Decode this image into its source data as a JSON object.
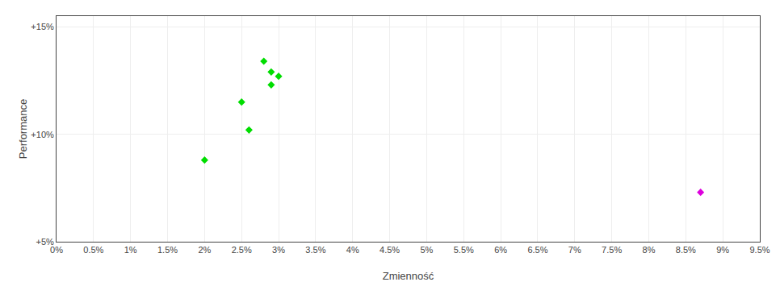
{
  "chart_data": {
    "type": "scatter",
    "x_label": "Zmienność",
    "y_label": "Performance",
    "series": [
      {
        "color": "#00dd00",
        "marker": "diamond",
        "x": [
          0.028,
          0.029,
          0.03,
          0.029,
          0.025,
          0.026,
          0.02
        ],
        "values": [
          0.134,
          0.129,
          0.127,
          0.123,
          0.115,
          0.102,
          0.088
        ]
      },
      {
        "color": "#dd00dd",
        "marker": "diamond",
        "x": [
          0.087
        ],
        "values": [
          0.073
        ]
      }
    ],
    "xlim": [
      0.0,
      0.095
    ],
    "ylim": [
      0.05,
      0.155
    ],
    "xticks": [
      {
        "value": 0.0,
        "label": "0%"
      },
      {
        "value": 0.005,
        "label": "0.5%"
      },
      {
        "value": 0.01,
        "label": "1%"
      },
      {
        "value": 0.015,
        "label": "1.5%"
      },
      {
        "value": 0.02,
        "label": "2%"
      },
      {
        "value": 0.025,
        "label": "2.5%"
      },
      {
        "value": 0.03,
        "label": "3%"
      },
      {
        "value": 0.035,
        "label": "3.5%"
      },
      {
        "value": 0.04,
        "label": "4%"
      },
      {
        "value": 0.045,
        "label": "4.5%"
      },
      {
        "value": 0.05,
        "label": "5%"
      },
      {
        "value": 0.055,
        "label": "5.5%"
      },
      {
        "value": 0.06,
        "label": "6%"
      },
      {
        "value": 0.065,
        "label": "6.5%"
      },
      {
        "value": 0.07,
        "label": "7%"
      },
      {
        "value": 0.075,
        "label": "7.5%"
      },
      {
        "value": 0.08,
        "label": "8%"
      },
      {
        "value": 0.085,
        "label": "8.5%"
      },
      {
        "value": 0.09,
        "label": "9%"
      },
      {
        "value": 0.095,
        "label": "9.5%"
      }
    ],
    "yticks": [
      {
        "value": 0.05,
        "label": "+5%"
      },
      {
        "value": 0.1,
        "label": "+10%"
      },
      {
        "value": 0.15,
        "label": "+15%"
      }
    ],
    "grid": true
  }
}
